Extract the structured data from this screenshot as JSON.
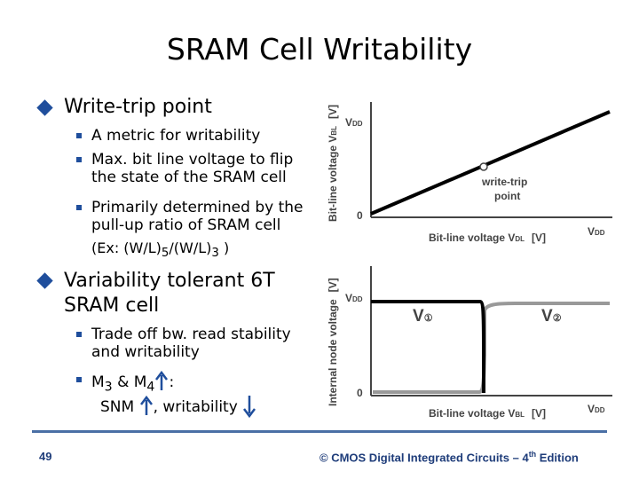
{
  "title": "SRAM Cell Writability",
  "bullets": [
    {
      "text": "Write-trip point",
      "items": [
        "A metric for writability",
        "Max. bit line voltage to flip the state of the SRAM cell",
        "Primarily determined by the pull-up ratio of SRAM cell"
      ],
      "example": [
        "(Ex: (W/L)",
        "5",
        "/(W/L)",
        "3",
        " )"
      ]
    },
    {
      "text": "Variability tolerant 6T SRAM cell",
      "items": [
        "Trade off bw. read stability and writability"
      ],
      "m_line": [
        "M",
        "3",
        " & M",
        "4",
        ":"
      ],
      "snm_line": [
        "SNM",
        ", writability"
      ]
    }
  ],
  "figure1": {
    "y_label": [
      "Bit-line voltage V",
      "BL"
    ],
    "y_unit": "[V]",
    "y_top": [
      "V",
      "DD"
    ],
    "y_zero": "0",
    "point_label": [
      "write-trip",
      "point"
    ],
    "x_label": [
      "Bit-line voltage V",
      "DL",
      "[V]"
    ],
    "x_end": [
      "V",
      "DD"
    ]
  },
  "figure2": {
    "y_label": "Internal node voltage",
    "y_unit": "[V]",
    "y_top": [
      "V",
      "DD"
    ],
    "y_zero": "0",
    "v1": [
      "V",
      "①"
    ],
    "v2": [
      "V",
      "②"
    ],
    "x_label": [
      "Bit-line voltage V",
      "BL",
      "[V]"
    ],
    "x_end": [
      "V",
      "DD"
    ]
  },
  "footer": {
    "page": "49",
    "copyright": [
      "© CMOS Digital Integrated Circuits – 4",
      "th",
      " Edition"
    ]
  }
}
